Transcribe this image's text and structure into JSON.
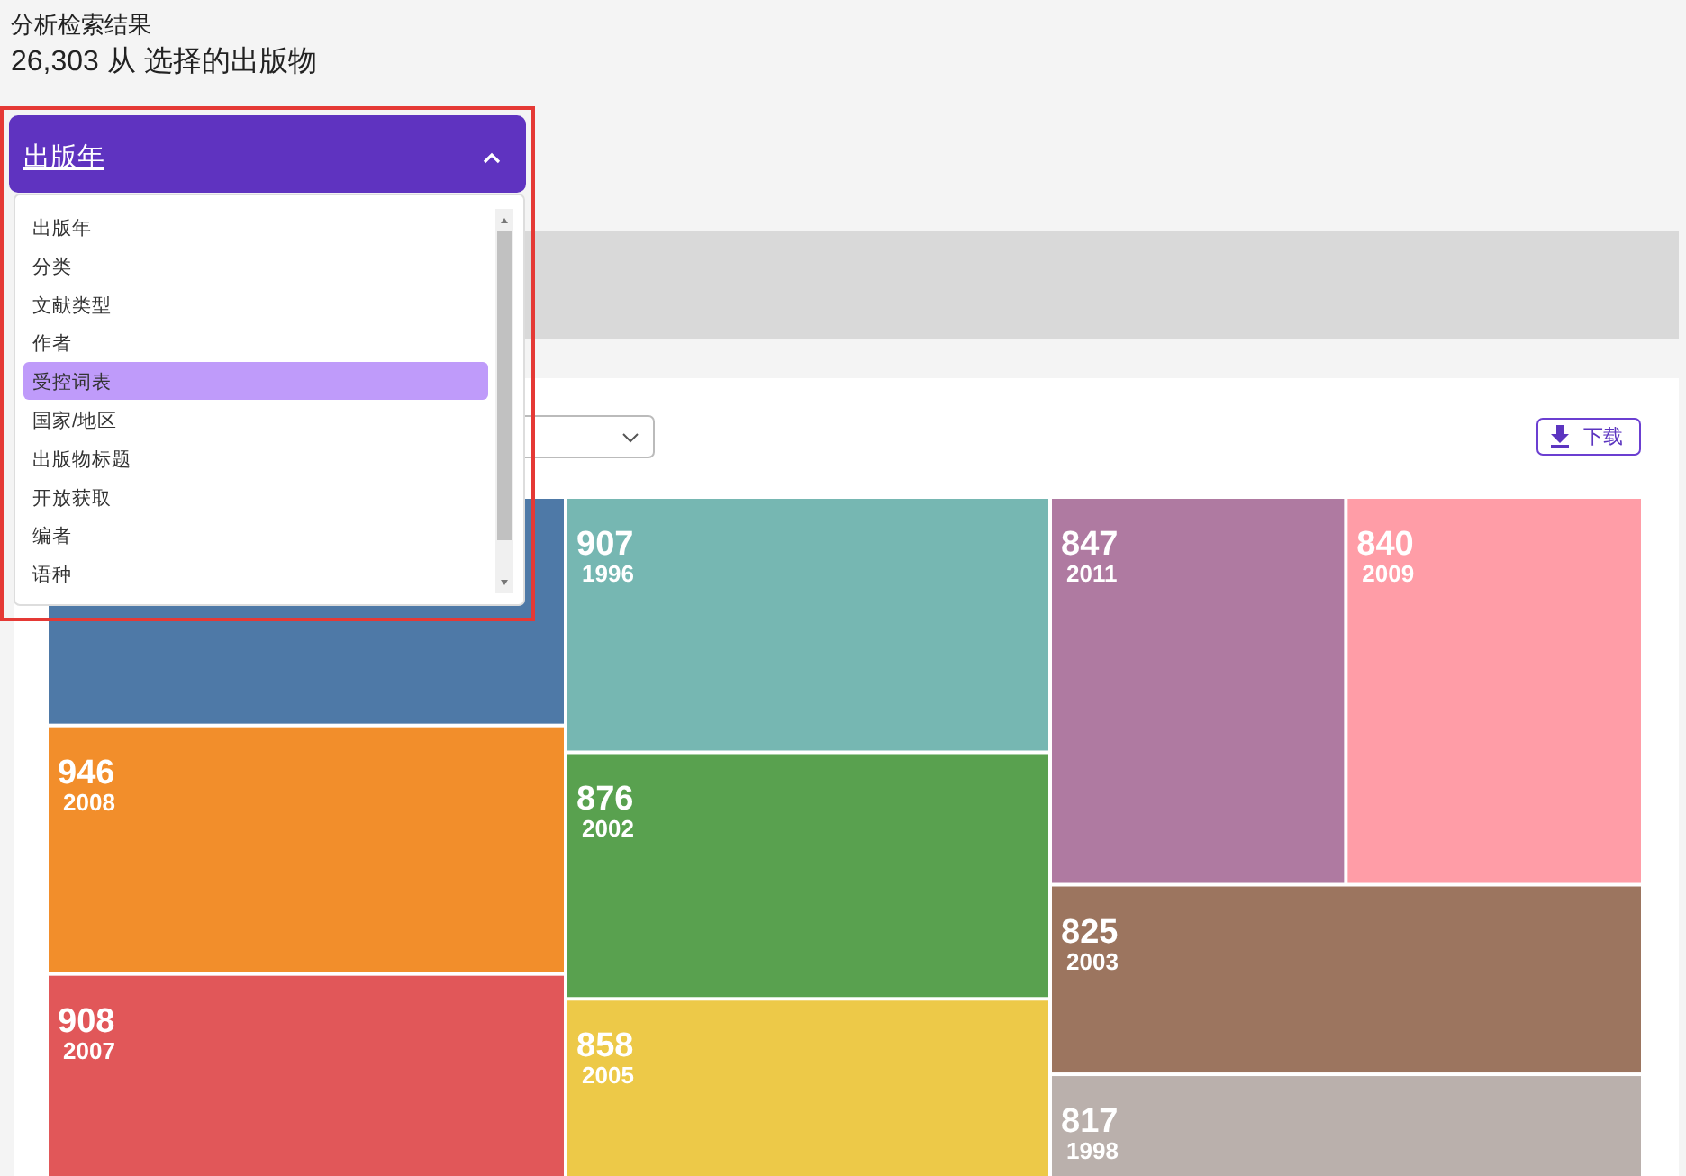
{
  "chart_data": {
    "type": "other",
    "title": "分析检索结果",
    "subtitle": "26,303 从 选择的出版物",
    "categories": [
      null,
      "2008",
      "2007",
      "1996",
      "2002",
      "2005",
      "2011",
      "2009",
      "2003",
      "1998"
    ],
    "values": [
      null,
      946,
      908,
      907,
      876,
      858,
      847,
      840,
      825,
      817
    ],
    "colors": [
      "#4e79a7",
      "#f28e2b",
      "#e15759",
      "#76b7b2",
      "#59a14f",
      "#edc948",
      "#af7aa1",
      "#ff9da7",
      "#9c755f",
      "#bab0ac"
    ],
    "data_labels": true,
    "annotations": [
      "出版年",
      "出版年",
      "分类",
      "文献类型",
      "作者",
      "受控词表",
      "国家/地区",
      "出版物标题",
      "开放获取",
      "编者",
      "语种",
      "下载"
    ]
  }
}
